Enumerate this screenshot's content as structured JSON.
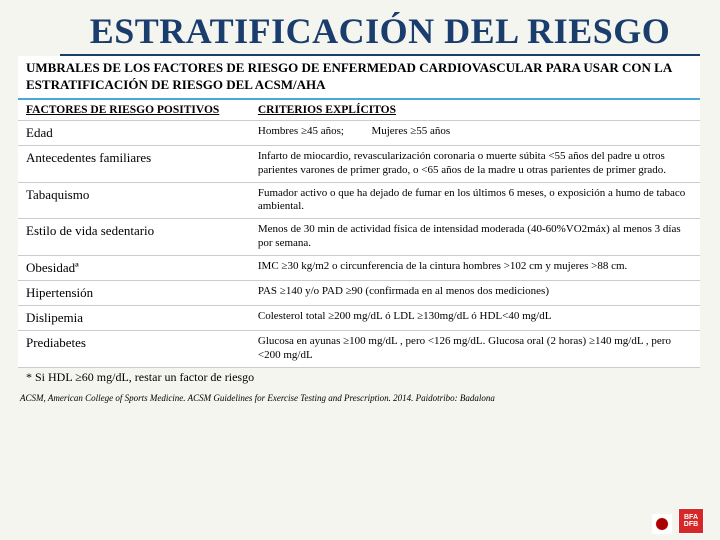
{
  "title": "ESTRATIFICACIÓN DEL RIESGO",
  "subtitle": "UMBRALES DE LOS FACTORES DE RIESGO DE ENFERMEDAD CARDIOVASCULAR PARA USAR CON LA ESTRATIFICACIÓN DE RIESGO DEL ACSM/AHA",
  "header_factor": "FACTORES DE RIESGO POSITIVOS",
  "header_criteria": "CRITERIOS EXPLÍCITOS",
  "rows": [
    {
      "factor": "Edad",
      "criteria": "Hombres ≥45 años;          Mujeres ≥55 años"
    },
    {
      "factor": "Antecedentes familiares",
      "criteria": "Infarto de miocardio, revascularización coronaria o muerte súbita <55 años del padre u otros parientes varones de primer grado, o <65 años de la madre u otras parientes de primer grado."
    },
    {
      "factor": "Tabaquismo",
      "criteria": "Fumador activo o que ha dejado de fumar en los últimos 6 meses, o exposición a humo de tabaco ambiental."
    },
    {
      "factor": "Estilo de vida sedentario",
      "criteria": "Menos de 30 min de actividad física de intensidad moderada (40-60%VO2máx) al menos 3 días por semana."
    },
    {
      "factor": "Obesidadª",
      "criteria": "IMC ≥30 kg/m2 o circunferencia de la cintura hombres >102 cm y mujeres >88 cm."
    },
    {
      "factor": "Hipertensión",
      "criteria": "PAS ≥140 y/o PAD ≥90 (confirmada en al menos dos mediciones)"
    },
    {
      "factor": "Dislipemia",
      "criteria": "Colesterol total ≥200 mg/dL ó LDL ≥130mg/dL ó HDL<40 mg/dL"
    },
    {
      "factor": "Prediabetes",
      "criteria": "Glucosa en ayunas ≥100 mg/dL , pero <126 mg/dL. Glucosa oral (2 horas) ≥140 mg/dL , pero <200 mg/dL"
    }
  ],
  "footnote": "* Si HDL ≥60 mg/dL, restar un factor de riesgo",
  "citation": "ACSM, American College of Sports Medicine. ACSM Guidelines for Exercise Testing and Prescription. 2014. Paidotribo: Badalona",
  "logo_text": "BFA DFB",
  "colors": {
    "title": "#1a3d6d",
    "accent_line": "#4aa8d8",
    "logo_bg": "#d62828"
  }
}
